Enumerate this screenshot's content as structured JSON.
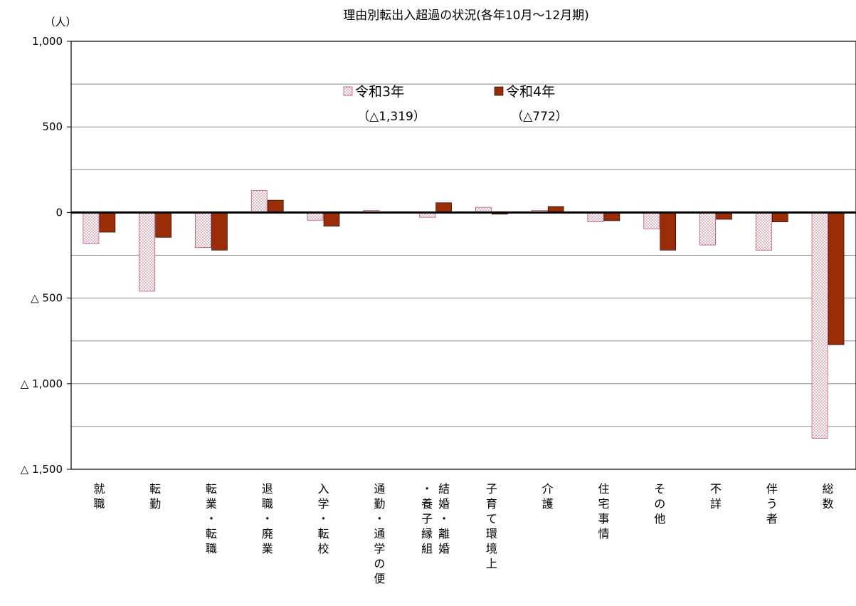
{
  "chart_data": {
    "type": "bar",
    "title": "理由別転出入超過の状況(各年10月～12月期)",
    "ylabel": "（人）",
    "ylim": [
      -1500,
      1000
    ],
    "yticks": [
      {
        "value": 1000,
        "label": "1,000"
      },
      {
        "value": 500,
        "label": "500"
      },
      {
        "value": 0,
        "label": "0"
      },
      {
        "value": -500,
        "label": "△ 500"
      },
      {
        "value": -1000,
        "label": "△ 1,000"
      },
      {
        "value": -1500,
        "label": "△ 1,500"
      }
    ],
    "gridlines": [
      1000,
      750,
      500,
      250,
      0,
      -250,
      -500,
      -750,
      -1000,
      -1250,
      -1500
    ],
    "categories": [
      [
        "就職"
      ],
      [
        "転勤"
      ],
      [
        "転業・転職"
      ],
      [
        "退職・廃業"
      ],
      [
        "入学・転校"
      ],
      [
        "通勤・通学の便"
      ],
      [
        "結婚・離婚",
        "・養子縁組"
      ],
      [
        "子育て環境上"
      ],
      [
        "介護"
      ],
      [
        "住宅事情"
      ],
      [
        "その他"
      ],
      [
        "不詳"
      ],
      [
        "伴う者"
      ],
      [
        "総数"
      ]
    ],
    "series": [
      {
        "name": "令和3年",
        "total_label": "（△1,319）",
        "color": "#d98a9a",
        "pattern": "dots",
        "values": [
          -180,
          -460,
          -205,
          128,
          -45,
          12,
          -28,
          30,
          12,
          -55,
          -95,
          -190,
          -220,
          -1319
        ]
      },
      {
        "name": "令和4年",
        "total_label": "（△772）",
        "color": "#9b2c08",
        "pattern": "solid",
        "values": [
          -115,
          -145,
          -220,
          72,
          -80,
          0,
          57,
          -10,
          35,
          -48,
          -220,
          -40,
          -55,
          -772
        ]
      }
    ]
  }
}
